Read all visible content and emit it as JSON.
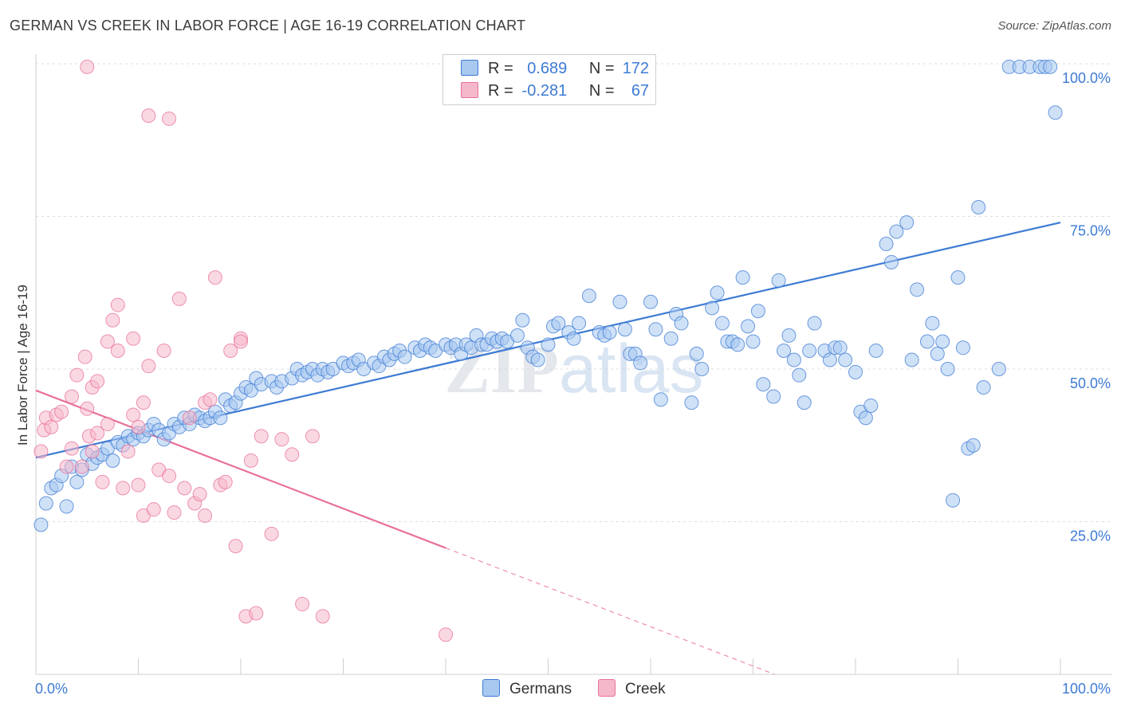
{
  "title": "GERMAN VS CREEK IN LABOR FORCE | AGE 16-19 CORRELATION CHART",
  "source": "Source: ZipAtlas.com",
  "watermark": "ZIPatlas",
  "legend": {
    "rows": [
      {
        "r_label": "R =",
        "r_value": "0.689",
        "n_label": "N =",
        "n_value": "172",
        "color": "#a8c8f0"
      },
      {
        "r_label": "R =",
        "r_value": "-0.281",
        "n_label": "N =",
        "n_value": "67",
        "color": "#f5b8cb"
      }
    ]
  },
  "bottom_legend": [
    {
      "label": "Germans",
      "color": "#a8c8f0"
    },
    {
      "label": "Creek",
      "color": "#f5b8cb"
    }
  ],
  "chart_data": {
    "type": "scatter",
    "title": "GERMAN VS CREEK IN LABOR FORCE | AGE 16-19 CORRELATION CHART",
    "ylabel": "In Labor Force | Age 16-19",
    "xlabel": "",
    "xlim": [
      0,
      100
    ],
    "ylim": [
      0,
      100
    ],
    "x_tick_labels": [
      "0.0%",
      "100.0%"
    ],
    "y_tick_values": [
      25,
      50,
      75,
      100
    ],
    "y_tick_labels": [
      "25.0%",
      "50.0%",
      "75.0%",
      "100.0%"
    ],
    "series": [
      {
        "name": "Germans",
        "color": "#3d7bd4",
        "fill": "#a8c8f0",
        "trend": {
          "x0": 0,
          "y0": 35.5,
          "x1": 100,
          "y1": 74,
          "solid_to": 100
        },
        "points": [
          [
            0.5,
            24.5
          ],
          [
            1,
            28
          ],
          [
            1.5,
            30.5
          ],
          [
            2,
            31
          ],
          [
            2.5,
            32.5
          ],
          [
            3,
            27.5
          ],
          [
            3.5,
            34
          ],
          [
            4,
            31.5
          ],
          [
            4.5,
            33.5
          ],
          [
            5,
            36
          ],
          [
            5.5,
            34.5
          ],
          [
            6,
            35.5
          ],
          [
            6.5,
            36
          ],
          [
            7,
            37
          ],
          [
            7.5,
            35
          ],
          [
            8,
            38
          ],
          [
            8.5,
            37.5
          ],
          [
            9,
            39
          ],
          [
            9.5,
            38.5
          ],
          [
            10,
            39.5
          ],
          [
            10.5,
            39
          ],
          [
            11,
            40
          ],
          [
            11.5,
            41
          ],
          [
            12,
            40
          ],
          [
            12.5,
            38.5
          ],
          [
            13,
            39.5
          ],
          [
            13.5,
            41
          ],
          [
            14,
            40.5
          ],
          [
            14.5,
            42
          ],
          [
            15,
            41
          ],
          [
            15.5,
            42.5
          ],
          [
            16,
            42
          ],
          [
            16.5,
            41.5
          ],
          [
            17,
            42
          ],
          [
            17.5,
            43
          ],
          [
            18,
            42
          ],
          [
            18.5,
            45
          ],
          [
            19,
            44
          ],
          [
            19.5,
            44.5
          ],
          [
            20,
            46
          ],
          [
            20.5,
            47
          ],
          [
            21,
            46.5
          ],
          [
            21.5,
            48.5
          ],
          [
            22,
            47.5
          ],
          [
            23,
            48
          ],
          [
            23.5,
            47
          ],
          [
            24,
            48
          ],
          [
            25,
            48.5
          ],
          [
            25.5,
            50
          ],
          [
            26,
            49
          ],
          [
            26.5,
            49.5
          ],
          [
            27,
            50
          ],
          [
            27.5,
            49
          ],
          [
            28,
            50
          ],
          [
            28.5,
            49.5
          ],
          [
            29,
            50
          ],
          [
            30,
            51
          ],
          [
            30.5,
            50.5
          ],
          [
            31,
            51
          ],
          [
            31.5,
            51.5
          ],
          [
            32,
            50
          ],
          [
            33,
            51
          ],
          [
            33.5,
            50.5
          ],
          [
            34,
            52
          ],
          [
            34.5,
            51.5
          ],
          [
            35,
            52.5
          ],
          [
            35.5,
            53
          ],
          [
            36,
            52
          ],
          [
            37,
            53.5
          ],
          [
            37.5,
            53
          ],
          [
            38,
            54
          ],
          [
            38.5,
            53.5
          ],
          [
            39,
            53
          ],
          [
            40,
            54
          ],
          [
            40.5,
            53.5
          ],
          [
            41,
            54
          ],
          [
            41.5,
            52.5
          ],
          [
            42,
            54
          ],
          [
            42.5,
            53.5
          ],
          [
            43,
            55.5
          ],
          [
            43.5,
            54
          ],
          [
            44,
            54
          ],
          [
            44.5,
            55
          ],
          [
            45,
            54.5
          ],
          [
            45.5,
            55
          ],
          [
            46,
            54.5
          ],
          [
            47,
            55.5
          ],
          [
            47.5,
            58
          ],
          [
            48,
            53.5
          ],
          [
            48.5,
            52
          ],
          [
            49,
            51.5
          ],
          [
            50,
            54
          ],
          [
            50.5,
            57
          ],
          [
            51,
            57.5
          ],
          [
            52,
            56
          ],
          [
            52.5,
            55
          ],
          [
            53,
            57.5
          ],
          [
            54,
            62
          ],
          [
            55,
            56
          ],
          [
            55.5,
            55.5
          ],
          [
            56,
            56
          ],
          [
            57,
            61
          ],
          [
            57.5,
            56.5
          ],
          [
            58,
            52.5
          ],
          [
            58.5,
            52.5
          ],
          [
            59,
            51
          ],
          [
            60,
            61
          ],
          [
            60.5,
            56.5
          ],
          [
            61,
            45
          ],
          [
            62,
            55
          ],
          [
            62.5,
            59
          ],
          [
            63,
            57.5
          ],
          [
            64,
            44.5
          ],
          [
            64.5,
            52.5
          ],
          [
            65,
            50
          ],
          [
            66,
            60
          ],
          [
            66.5,
            62.5
          ],
          [
            67,
            57.5
          ],
          [
            67.5,
            54.5
          ],
          [
            68,
            54.5
          ],
          [
            68.5,
            54
          ],
          [
            69,
            65
          ],
          [
            69.5,
            57
          ],
          [
            70,
            54.5
          ],
          [
            70.5,
            59.5
          ],
          [
            71,
            47.5
          ],
          [
            72,
            45.5
          ],
          [
            72.5,
            64.5
          ],
          [
            73,
            53
          ],
          [
            73.5,
            55.5
          ],
          [
            74,
            51.5
          ],
          [
            74.5,
            49
          ],
          [
            75,
            44.5
          ],
          [
            75.5,
            53
          ],
          [
            76,
            57.5
          ],
          [
            77,
            53
          ],
          [
            77.5,
            51.5
          ],
          [
            78,
            53.5
          ],
          [
            78.5,
            53.5
          ],
          [
            79,
            51.5
          ],
          [
            80,
            49.5
          ],
          [
            80.5,
            43
          ],
          [
            81,
            42
          ],
          [
            81.5,
            44
          ],
          [
            82,
            53
          ],
          [
            83,
            70.5
          ],
          [
            83.5,
            67.5
          ],
          [
            84,
            72.5
          ],
          [
            85,
            74
          ],
          [
            85.5,
            51.5
          ],
          [
            86,
            63
          ],
          [
            87,
            54.5
          ],
          [
            87.5,
            57.5
          ],
          [
            88,
            52.5
          ],
          [
            88.5,
            54.5
          ],
          [
            89,
            50
          ],
          [
            89.5,
            28.5
          ],
          [
            90,
            65
          ],
          [
            90.5,
            53.5
          ],
          [
            91,
            37
          ],
          [
            91.5,
            37.5
          ],
          [
            92,
            76.5
          ],
          [
            92.5,
            47
          ],
          [
            94,
            50
          ],
          [
            95,
            99.5
          ],
          [
            96,
            99.5
          ],
          [
            97,
            99.5
          ],
          [
            98,
            99.5
          ],
          [
            98.5,
            99.5
          ],
          [
            99,
            99.5
          ],
          [
            99.5,
            92
          ]
        ]
      },
      {
        "name": "Creek",
        "color": "#e8709a",
        "fill": "#f5b8cb",
        "trend": {
          "x0": 0,
          "y0": 46.5,
          "x1": 100,
          "y1": -18,
          "solid_to": 40
        },
        "points": [
          [
            0.5,
            36.5
          ],
          [
            0.8,
            40
          ],
          [
            1,
            42
          ],
          [
            1.5,
            40.5
          ],
          [
            2,
            42.5
          ],
          [
            2.5,
            43
          ],
          [
            3,
            34
          ],
          [
            3.5,
            37
          ],
          [
            3.5,
            45.5
          ],
          [
            4,
            49
          ],
          [
            4.5,
            34
          ],
          [
            4.8,
            52
          ],
          [
            5,
            43.5
          ],
          [
            5.2,
            39
          ],
          [
            5.5,
            47
          ],
          [
            5.5,
            36.5
          ],
          [
            6,
            39.5
          ],
          [
            6,
            48
          ],
          [
            6.5,
            31.5
          ],
          [
            7,
            41
          ],
          [
            7,
            54.5
          ],
          [
            7.5,
            58
          ],
          [
            8,
            53
          ],
          [
            8.5,
            30.5
          ],
          [
            9,
            36.5
          ],
          [
            9.5,
            42.5
          ],
          [
            9.5,
            55
          ],
          [
            10,
            31
          ],
          [
            10,
            40.5
          ],
          [
            10.5,
            44.5
          ],
          [
            10.5,
            26
          ],
          [
            11,
            50.5
          ],
          [
            11,
            91.5
          ],
          [
            11.5,
            27
          ],
          [
            12,
            33.5
          ],
          [
            12.5,
            53
          ],
          [
            13,
            91
          ],
          [
            13.5,
            26.5
          ],
          [
            14,
            61.5
          ],
          [
            14.5,
            30.5
          ],
          [
            15,
            42
          ],
          [
            15.5,
            28
          ],
          [
            16,
            29.5
          ],
          [
            16.5,
            44.5
          ],
          [
            16.5,
            26
          ],
          [
            17,
            45
          ],
          [
            17.5,
            65
          ],
          [
            18,
            31
          ],
          [
            18.5,
            31.5
          ],
          [
            19,
            53
          ],
          [
            19.5,
            21
          ],
          [
            20,
            55
          ],
          [
            20.5,
            9.5
          ],
          [
            21,
            35
          ],
          [
            21.5,
            10
          ],
          [
            22,
            39
          ],
          [
            23,
            23
          ],
          [
            24,
            38.5
          ],
          [
            25,
            36
          ],
          [
            26,
            11.5
          ],
          [
            27,
            39
          ],
          [
            28,
            9.5
          ],
          [
            40,
            6.5
          ],
          [
            5,
            99.5
          ],
          [
            8,
            60.5
          ],
          [
            13,
            32.5
          ],
          [
            20,
            54.5
          ]
        ]
      }
    ]
  }
}
